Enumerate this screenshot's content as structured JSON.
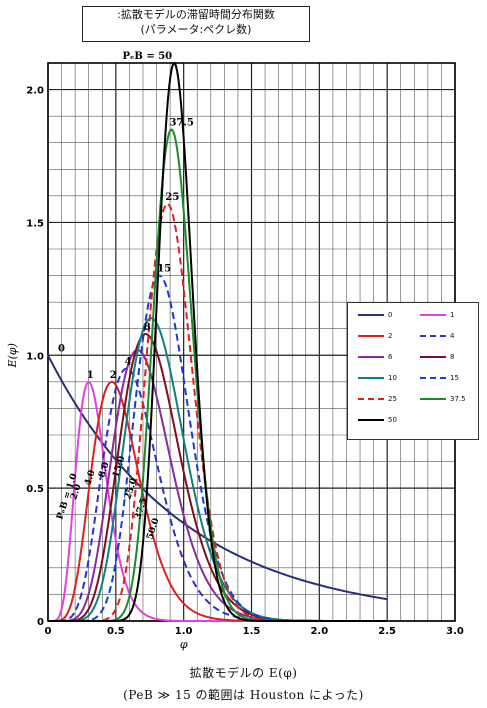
{
  "title_box": {
    "line1": ":拡散モデルの滞留時間分布関数",
    "line2": "(パラメータ:ペクレ数)"
  },
  "caption": {
    "line1": "拡散モデルの E(φ)",
    "line2": "(PeB ≫ 15 の範囲は Houston によった)"
  },
  "chart_data": {
    "type": "line",
    "xlabel": "φ",
    "ylabel": "E(φ)",
    "xlim": [
      0,
      3.0
    ],
    "ylim": [
      0,
      2.1
    ],
    "x_ticks": [
      "0",
      "0.5",
      "1.0",
      "1.5",
      "2.0",
      "2.5",
      "3.0"
    ],
    "y_ticks": [
      "0",
      "0.5",
      "1.0",
      "1.5",
      "2.0"
    ],
    "grid": true,
    "legend_position": "right",
    "legend": [
      "0",
      "1",
      "2",
      "4",
      "6",
      "8",
      "10",
      "15",
      "25",
      "37.5",
      "50"
    ],
    "series": [
      {
        "name": "0",
        "label": "0",
        "color": "#2a2f7a",
        "dashed": false,
        "peak_x": 0.0,
        "peak_y": 1.0
      },
      {
        "name": "1",
        "label": "1",
        "color": "#e040e0",
        "dashed": false,
        "peak_x": 0.3,
        "peak_y": 0.9
      },
      {
        "name": "2",
        "label": "2",
        "color": "#e02020",
        "dashed": false,
        "peak_x": 0.47,
        "peak_y": 0.9
      },
      {
        "name": "4",
        "label": "4",
        "color": "#3030c8",
        "dashed": true,
        "peak_x": 0.58,
        "peak_y": 0.95
      },
      {
        "name": "6",
        "label": "",
        "color": "#8a2aa0",
        "dashed": false,
        "peak_x": 0.66,
        "peak_y": 1.02
      },
      {
        "name": "8",
        "label": "8",
        "color": "#7a1020",
        "dashed": false,
        "peak_x": 0.72,
        "peak_y": 1.08
      },
      {
        "name": "10",
        "label": "",
        "color": "#108080",
        "dashed": false,
        "peak_x": 0.76,
        "peak_y": 1.14
      },
      {
        "name": "15",
        "label": "15",
        "color": "#1a3ad0",
        "dashed": true,
        "peak_x": 0.82,
        "peak_y": 1.3
      },
      {
        "name": "25",
        "label": "25",
        "color": "#e02020",
        "dashed": true,
        "peak_x": 0.88,
        "peak_y": 1.57
      },
      {
        "name": "37.5",
        "label": "37.5",
        "color": "#1a8a2a",
        "dashed": false,
        "peak_x": 0.91,
        "peak_y": 1.85
      },
      {
        "name": "50",
        "label": "PₑB = 50",
        "color": "#000000",
        "dashed": false,
        "peak_x": 0.93,
        "peak_y": 2.1
      }
    ],
    "rotated_labels": [
      "PₑB = 1.0",
      "2.0",
      "4.0",
      "8.0",
      "15.0",
      "25.0",
      "37.5",
      "50.0"
    ]
  }
}
